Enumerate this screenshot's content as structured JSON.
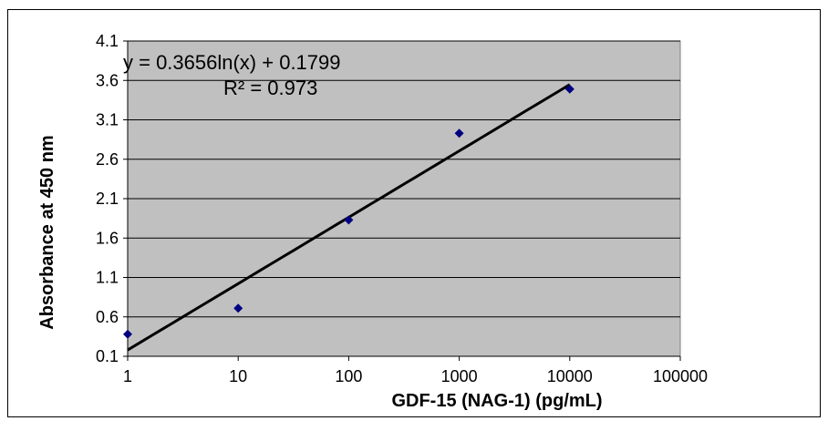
{
  "chart_data": {
    "type": "scatter",
    "x_scale": "log",
    "xlabel": "GDF-15 (NAG-1) (pg/mL)",
    "ylabel": "Absorbance at 450 nm",
    "xlim": [
      1,
      100000
    ],
    "ylim": [
      0.1,
      4.1
    ],
    "x_ticks": [
      1,
      10,
      100,
      1000,
      10000,
      100000
    ],
    "x_tick_labels": [
      "1",
      "10",
      "100",
      "1000",
      "10000",
      "100000"
    ],
    "y_ticks": [
      0.1,
      0.6,
      1.1,
      1.6,
      2.1,
      2.6,
      3.1,
      3.6,
      4.1
    ],
    "y_tick_labels": [
      "0.1",
      "0.6",
      "1.1",
      "1.6",
      "2.1",
      "2.6",
      "3.1",
      "3.6",
      "4.1"
    ],
    "grid": "horizontal",
    "series": [
      {
        "x": [
          1,
          10,
          100,
          1000,
          10000
        ],
        "y": [
          0.38,
          0.71,
          1.83,
          2.93,
          3.49
        ],
        "marker": "diamond"
      }
    ],
    "trendline": {
      "type": "logarithmic",
      "slope": 0.3656,
      "intercept": 0.1799,
      "x_range": [
        1,
        10000
      ],
      "equation_text": "y = 0.3656ln(x) + 0.1799",
      "r2_text": "R² = 0.973"
    },
    "colors": {
      "plot_background": "#c0c0c0",
      "marker": "#000080",
      "trendline": "#000000",
      "gridline": "#000000"
    }
  }
}
